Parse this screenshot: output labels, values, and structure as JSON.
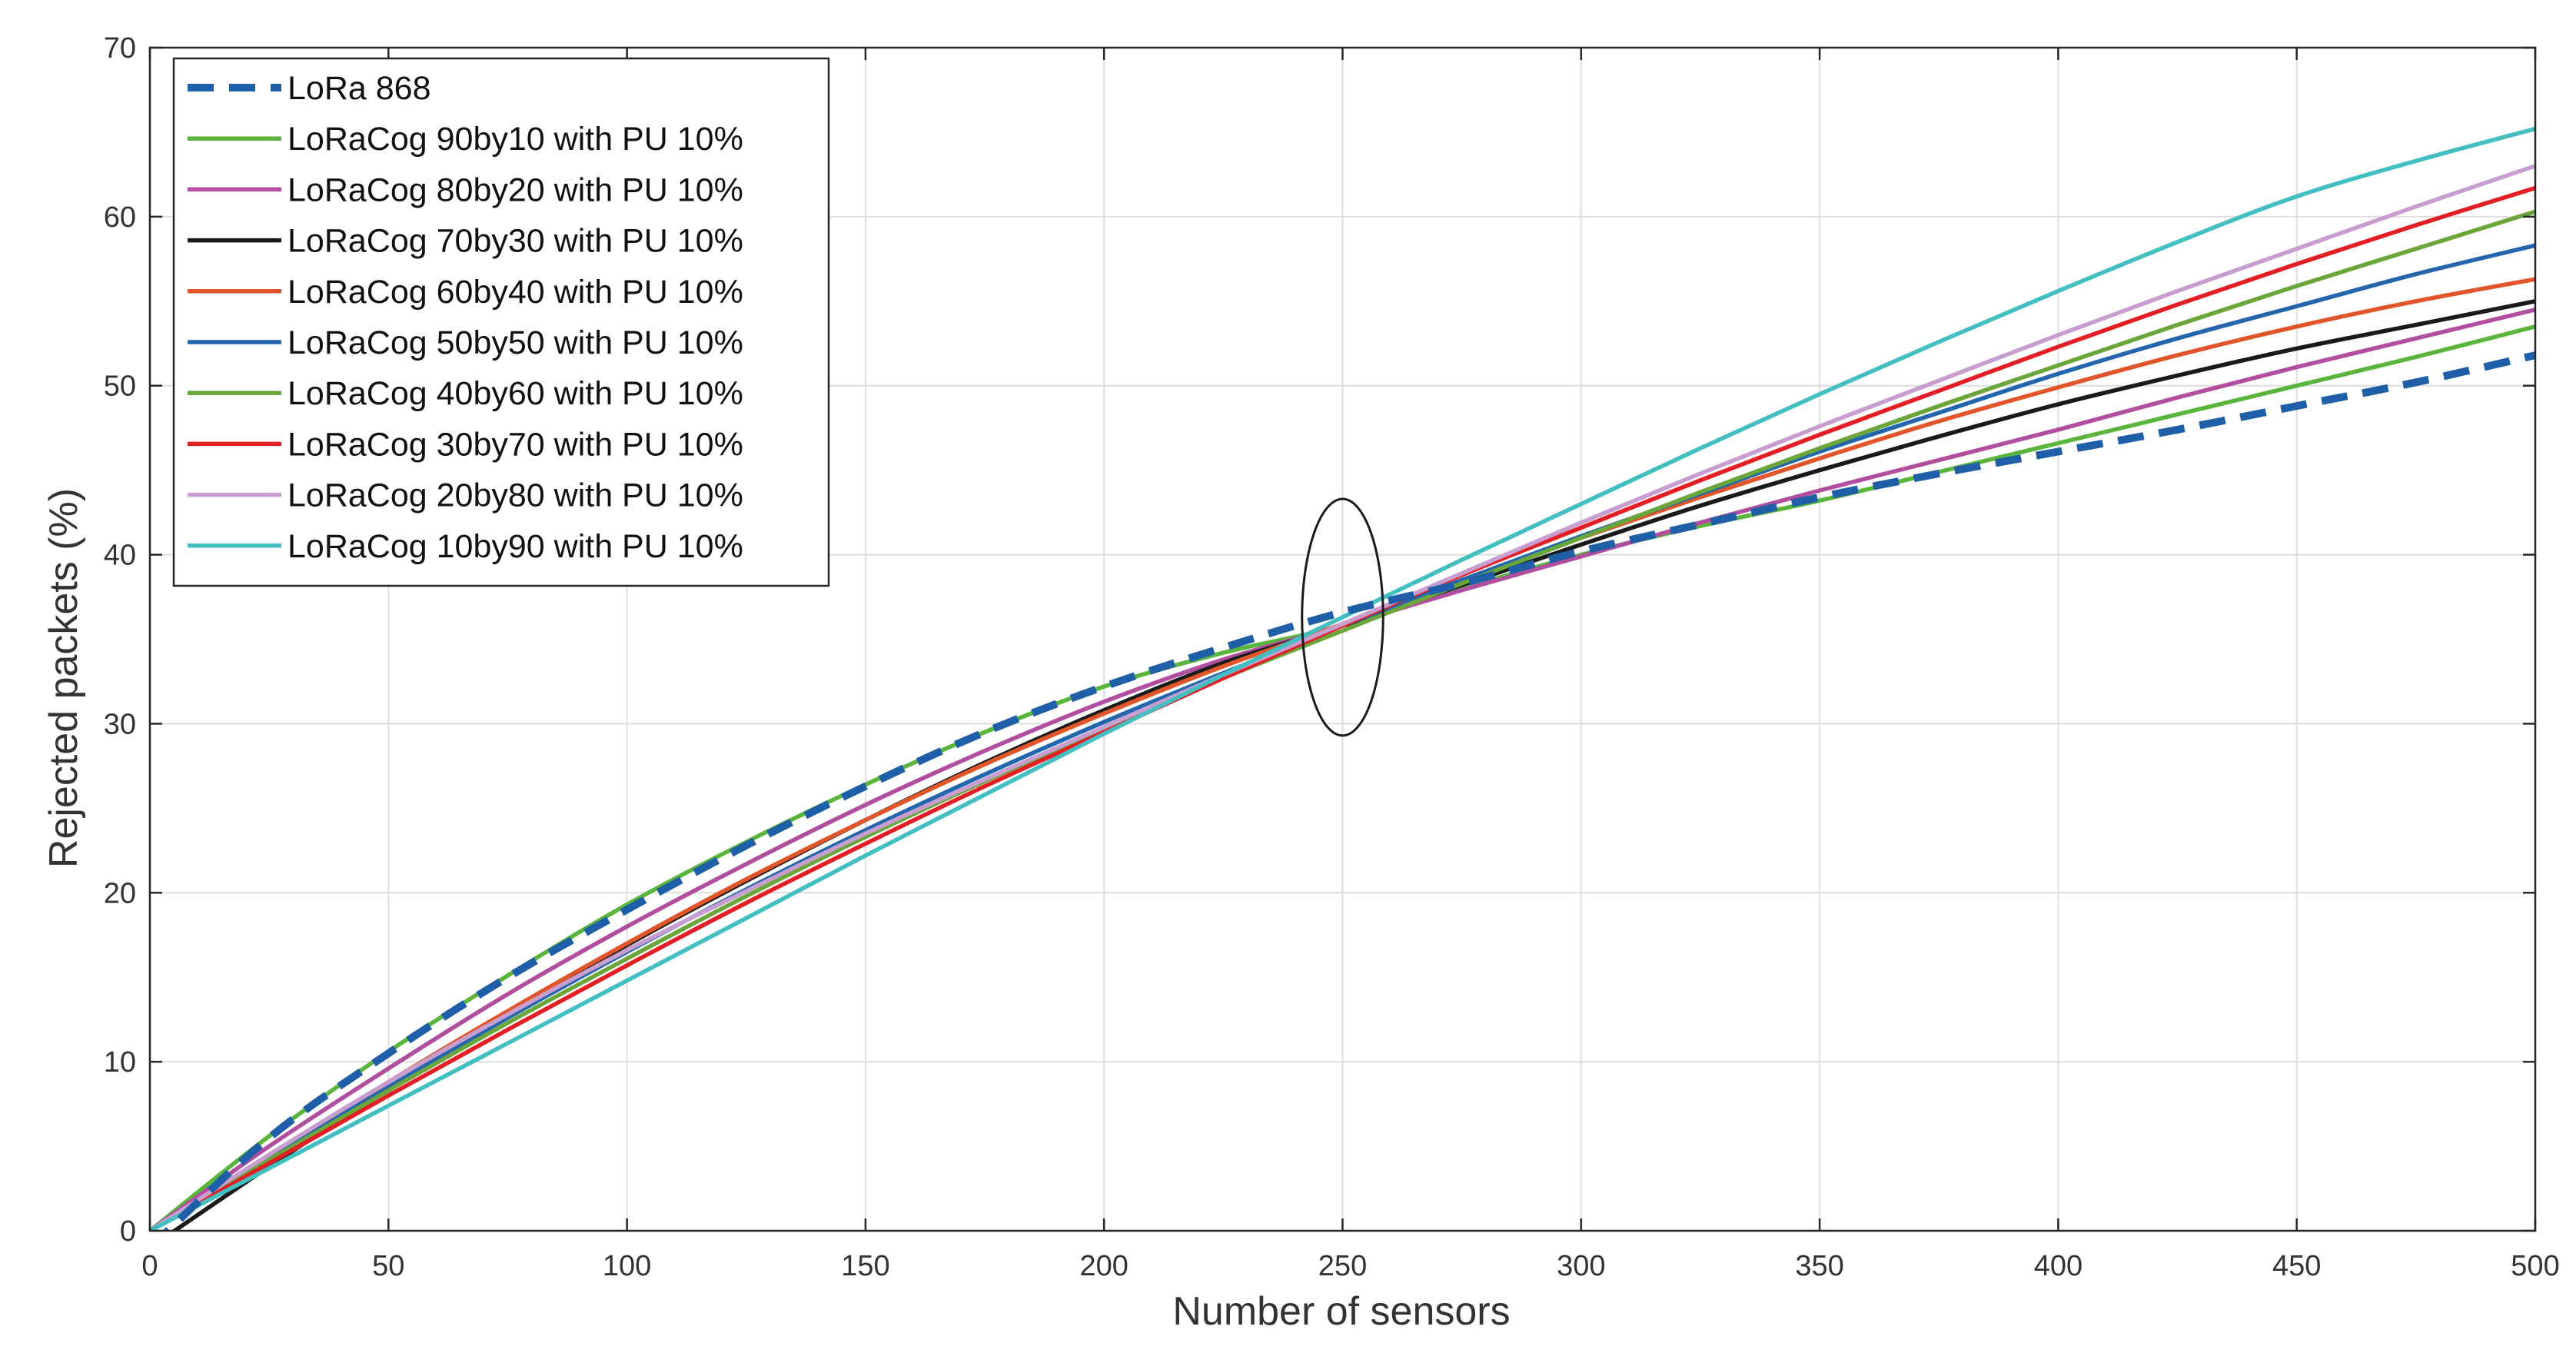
{
  "chart_data": {
    "type": "line",
    "title": "",
    "xlabel": "Number of sensors",
    "ylabel": "Rejected packets (%)",
    "xlim": [
      0,
      500
    ],
    "ylim": [
      0,
      70
    ],
    "xticks": [
      0,
      50,
      100,
      150,
      200,
      250,
      300,
      350,
      400,
      450,
      500
    ],
    "yticks": [
      0,
      10,
      20,
      30,
      40,
      50,
      60,
      70
    ],
    "grid": true,
    "legend_position": "top-left",
    "x": [
      0,
      25,
      50,
      75,
      100,
      125,
      150,
      175,
      200,
      225,
      250,
      275,
      300,
      325,
      350,
      375,
      400,
      425,
      450,
      475,
      500
    ],
    "series": [
      {
        "name": "LoRa 868",
        "color": "#1f5fa8",
        "dashed": true,
        "values": [
          -1.0,
          5.5,
          10.5,
          15.0,
          19.0,
          22.8,
          26.3,
          29.5,
          32.2,
          34.5,
          36.6,
          38.3,
          40.2,
          41.8,
          43.4,
          44.8,
          46.1,
          47.4,
          48.8,
          50.2,
          51.8
        ]
      },
      {
        "name": "LoRaCog 90by10 with PU 10%",
        "color": "#5ab53c",
        "values": [
          0.0,
          5.6,
          10.6,
          15.1,
          19.3,
          23.0,
          26.4,
          29.5,
          32.2,
          34.2,
          35.8,
          38.0,
          40.0,
          41.7,
          43.2,
          44.9,
          46.6,
          48.3,
          50.0,
          51.7,
          53.5
        ]
      },
      {
        "name": "LoRaCog 80by20 with PU 10%",
        "color": "#b24ea0",
        "values": [
          0.0,
          5.0,
          9.6,
          14.0,
          18.0,
          21.7,
          25.2,
          28.4,
          31.3,
          33.8,
          35.8,
          37.9,
          39.9,
          41.9,
          43.8,
          45.6,
          47.4,
          49.3,
          51.1,
          52.8,
          54.5
        ]
      },
      {
        "name": "LoRaCog 70by30 with PU 10%",
        "color": "#1a1a1a",
        "values": [
          -1.0,
          3.8,
          8.4,
          12.8,
          16.9,
          20.7,
          24.3,
          27.7,
          30.8,
          33.6,
          35.8,
          38.2,
          40.6,
          42.9,
          45.0,
          47.0,
          48.9,
          50.6,
          52.2,
          53.6,
          55.0
        ]
      },
      {
        "name": "LoRaCog 60by40 with PU 10%",
        "color": "#e0562a",
        "values": [
          0.0,
          4.4,
          8.8,
          13.0,
          17.0,
          20.8,
          24.3,
          27.6,
          30.6,
          33.4,
          35.9,
          38.5,
          41.0,
          43.4,
          45.7,
          47.9,
          49.9,
          51.8,
          53.5,
          55.0,
          56.3
        ]
      },
      {
        "name": "LoRaCog 50by50 with PU 10%",
        "color": "#2466ad",
        "values": [
          0.0,
          4.3,
          8.5,
          12.6,
          16.5,
          20.2,
          23.7,
          27.0,
          30.1,
          33.0,
          35.8,
          38.5,
          41.1,
          43.6,
          46.1,
          48.4,
          50.7,
          52.8,
          54.7,
          56.6,
          58.3
        ]
      },
      {
        "name": "LoRaCog 40by60 with PU 10%",
        "color": "#6aa63a",
        "values": [
          0.0,
          4.2,
          8.3,
          12.3,
          16.1,
          19.8,
          23.3,
          26.6,
          29.7,
          32.7,
          35.5,
          38.3,
          41.0,
          43.7,
          46.3,
          48.8,
          51.2,
          53.6,
          55.9,
          58.1,
          60.3
        ]
      },
      {
        "name": "LoRaCog 30by70 with PU 10%",
        "color": "#e31e24",
        "values": [
          0.0,
          4.0,
          8.0,
          11.9,
          15.7,
          19.4,
          22.9,
          26.3,
          29.5,
          32.7,
          35.8,
          38.8,
          41.6,
          44.4,
          47.1,
          49.7,
          52.3,
          54.8,
          57.2,
          59.5,
          61.7
        ]
      },
      {
        "name": "LoRaCog 20by80 with PU 10%",
        "color": "#c89ed0",
        "values": [
          0.0,
          4.5,
          8.8,
          12.8,
          16.6,
          20.1,
          23.5,
          26.7,
          29.8,
          32.9,
          35.9,
          38.9,
          41.9,
          44.8,
          47.6,
          50.3,
          53.0,
          55.6,
          58.1,
          60.6,
          63.0
        ]
      },
      {
        "name": "LoRaCog 10by90 with PU 10%",
        "color": "#43bfc2",
        "values": [
          0.0,
          3.7,
          7.4,
          11.1,
          14.8,
          18.5,
          22.2,
          25.8,
          29.4,
          32.9,
          36.3,
          39.7,
          43.0,
          46.3,
          49.5,
          52.6,
          55.6,
          58.5,
          61.2,
          63.3,
          65.2
        ]
      }
    ],
    "annotation": {
      "type": "ellipse",
      "x": 250,
      "y": 36.3,
      "rx": 8.5,
      "ry": 7
    }
  }
}
